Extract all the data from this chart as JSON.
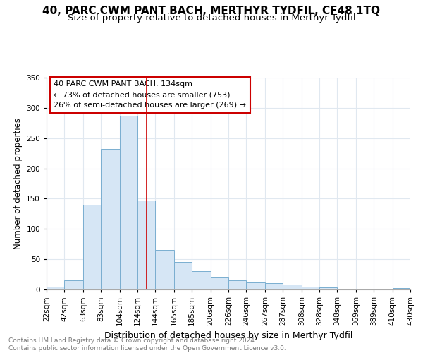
{
  "title": "40, PARC CWM PANT BACH, MERTHYR TYDFIL, CF48 1TQ",
  "subtitle": "Size of property relative to detached houses in Merthyr Tydfil",
  "xlabel": "Distribution of detached houses by size in Merthyr Tydfil",
  "ylabel": "Number of detached properties",
  "footer": "Contains HM Land Registry data © Crown copyright and database right 2024.\nContains public sector information licensed under the Open Government Licence v3.0.",
  "annotation_line1": "40 PARC CWM PANT BACH: 134sqm",
  "annotation_line2": "← 73% of detached houses are smaller (753)",
  "annotation_line3": "26% of semi-detached houses are larger (269) →",
  "property_size": 134,
  "bar_edges": [
    22,
    42,
    63,
    83,
    104,
    124,
    144,
    165,
    185,
    206,
    226,
    246,
    267,
    287,
    308,
    328,
    348,
    369,
    389,
    410,
    430
  ],
  "bar_heights": [
    5,
    15,
    140,
    232,
    287,
    147,
    65,
    45,
    30,
    20,
    15,
    12,
    10,
    8,
    5,
    3,
    1,
    1,
    0,
    2
  ],
  "bar_color": "#d6e6f5",
  "bar_edge_color": "#7aaed0",
  "vline_color": "#cc0000",
  "annotation_box_color": "#cc0000",
  "grid_color": "#e0e8f0",
  "ylim": [
    0,
    350
  ],
  "xlim_left": 22,
  "xlim_right": 430,
  "yticks": [
    0,
    50,
    100,
    150,
    200,
    250,
    300,
    350
  ],
  "title_fontsize": 11,
  "subtitle_fontsize": 9.5,
  "xlabel_fontsize": 9,
  "ylabel_fontsize": 8.5,
  "tick_fontsize": 7.5,
  "footer_fontsize": 6.5,
  "annotation_fontsize": 8
}
